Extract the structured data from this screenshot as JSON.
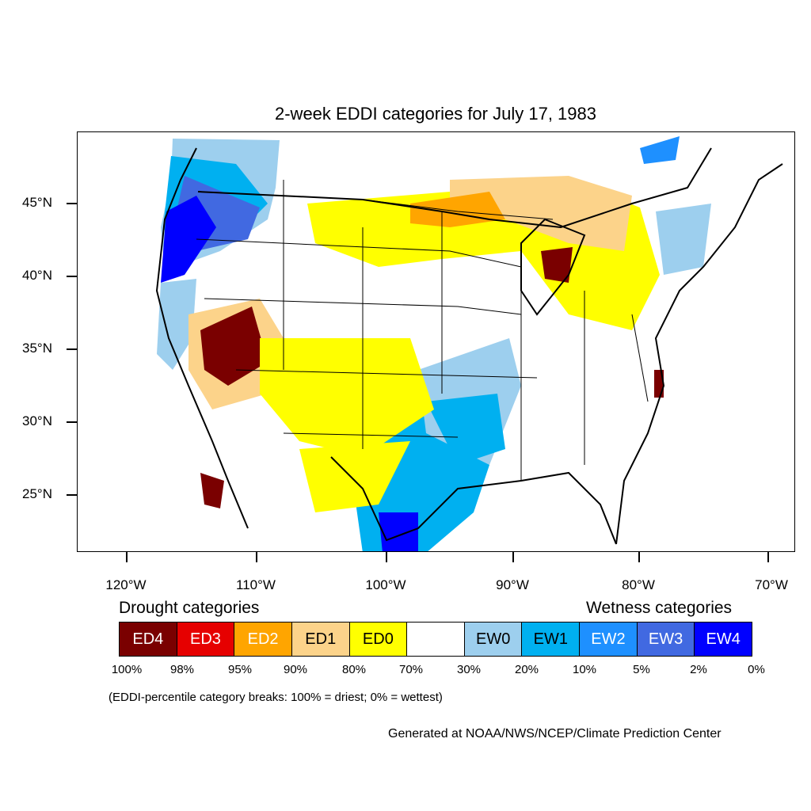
{
  "title": "2-week EDDI categories for July 17, 1983",
  "lat_labels": [
    "45°N",
    "40°N",
    "35°N",
    "30°N",
    "25°N"
  ],
  "lon_labels": [
    "120°W",
    "110°W",
    "100°W",
    "90°W",
    "80°W",
    "70°W"
  ],
  "legend": {
    "drought_heading": "Drought categories",
    "wetness_heading": "Wetness categories",
    "categories": [
      {
        "label": "ED4",
        "color": "#7a0000",
        "text_color": "#ffffff"
      },
      {
        "label": "ED3",
        "color": "#e60000",
        "text_color": "#ffffff"
      },
      {
        "label": "ED2",
        "color": "#ffa500",
        "text_color": "#ffffff"
      },
      {
        "label": "ED1",
        "color": "#fcd38a",
        "text_color": "#000000"
      },
      {
        "label": "ED0",
        "color": "#ffff00",
        "text_color": "#000000"
      },
      {
        "label": "",
        "color": "#ffffff",
        "text_color": "#000000"
      },
      {
        "label": "EW0",
        "color": "#9dcfee",
        "text_color": "#000000"
      },
      {
        "label": "EW1",
        "color": "#00b0f0",
        "text_color": "#000000"
      },
      {
        "label": "EW2",
        "color": "#1e90ff",
        "text_color": "#ffffff"
      },
      {
        "label": "EW3",
        "color": "#4169e1",
        "text_color": "#ffffff"
      },
      {
        "label": "EW4",
        "color": "#0000ff",
        "text_color": "#ffffff"
      }
    ],
    "percent_breaks": [
      "100%",
      "98%",
      "95%",
      "90%",
      "80%",
      "70%",
      "30%",
      "20%",
      "10%",
      "5%",
      "2%",
      "0%"
    ]
  },
  "note": "(EDDI-percentile category breaks: 100% = driest; 0% = wettest)",
  "credit": "Generated at NOAA/NWS/NCEP/Climate Prediction Center"
}
